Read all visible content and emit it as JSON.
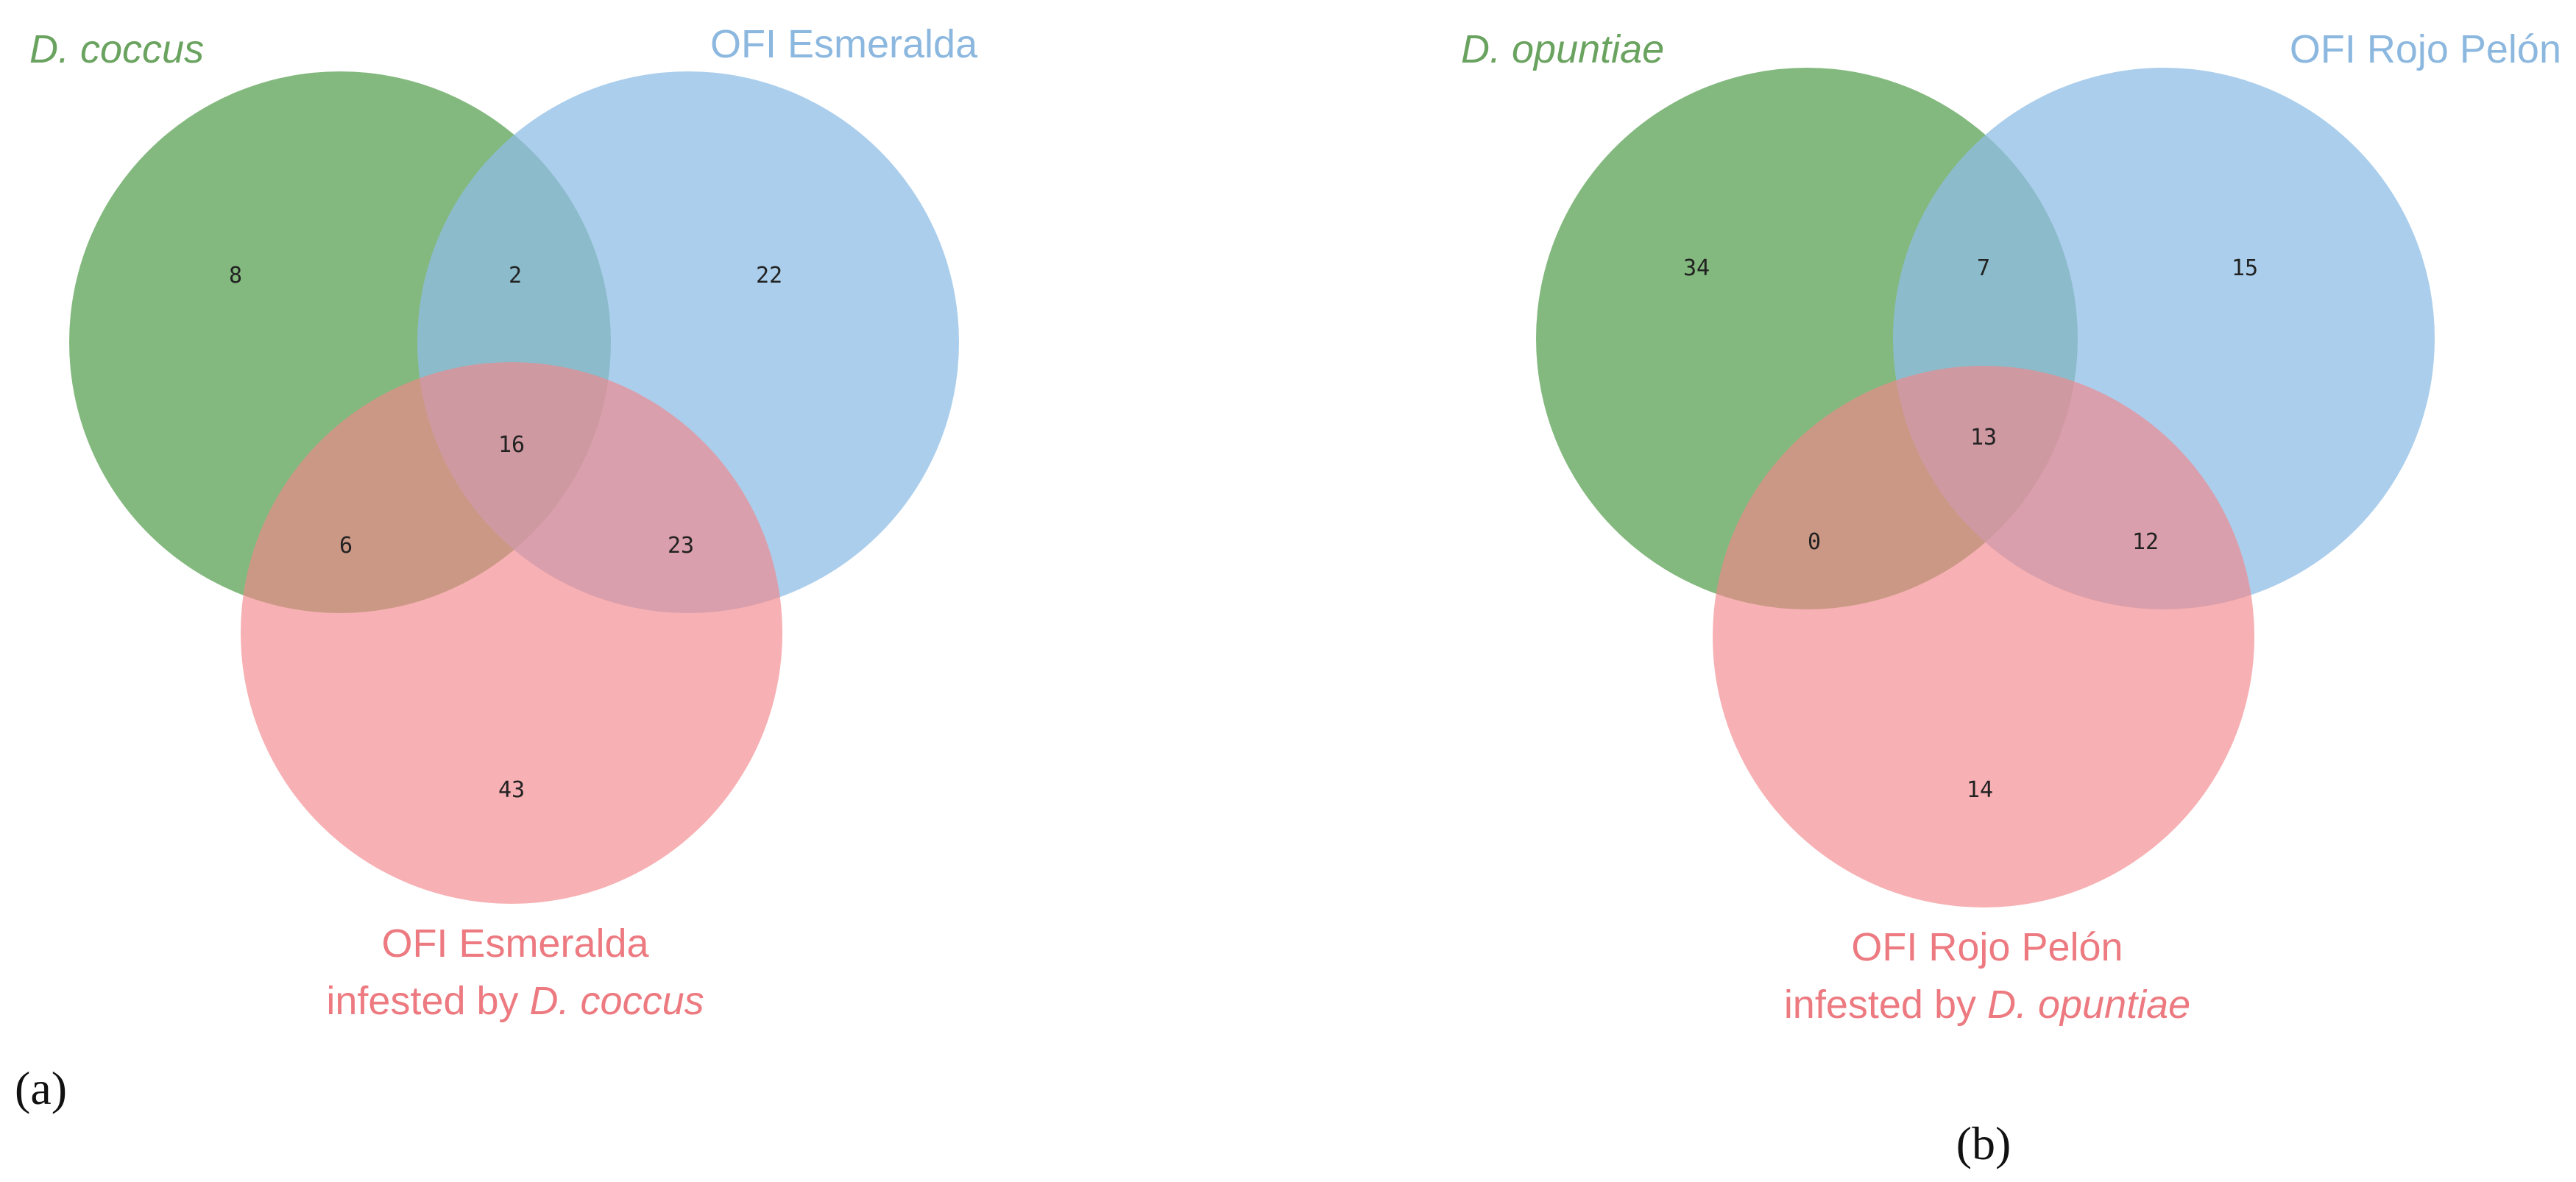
{
  "colors": {
    "set1": "#64a85e",
    "set2": "#8fbde6",
    "set3": "#f2858b",
    "set1_text": "#6aa35f",
    "set2_text": "#8cb8df",
    "set3_text": "#ec7a80"
  },
  "panels": [
    {
      "panel_label": "(a)",
      "sets": {
        "set1": {
          "label": "D. coccus"
        },
        "set2": {
          "label": "OFI Esmeralda"
        },
        "set3": {
          "label_line1": "OFI Esmeralda",
          "label_line2_prefix": "infested by ",
          "label_line2_italic": "D. coccus"
        }
      },
      "counts": {
        "only1": "8",
        "s12": "2",
        "only2": "22",
        "s123": "16",
        "s13": "6",
        "s23": "23",
        "only3": "43"
      }
    },
    {
      "panel_label": "(b)",
      "sets": {
        "set1": {
          "label": "D. opuntiae"
        },
        "set2": {
          "label": "OFI Rojo Pelón"
        },
        "set3": {
          "label_line1": "OFI Rojo Pelón",
          "label_line2_prefix": "infested by ",
          "label_line2_italic": "D. opuntiae"
        }
      },
      "counts": {
        "only1": "34",
        "s12": "7",
        "only2": "15",
        "s123": "13",
        "s13": "0",
        "s23": "12",
        "only3": "14"
      }
    }
  ]
}
